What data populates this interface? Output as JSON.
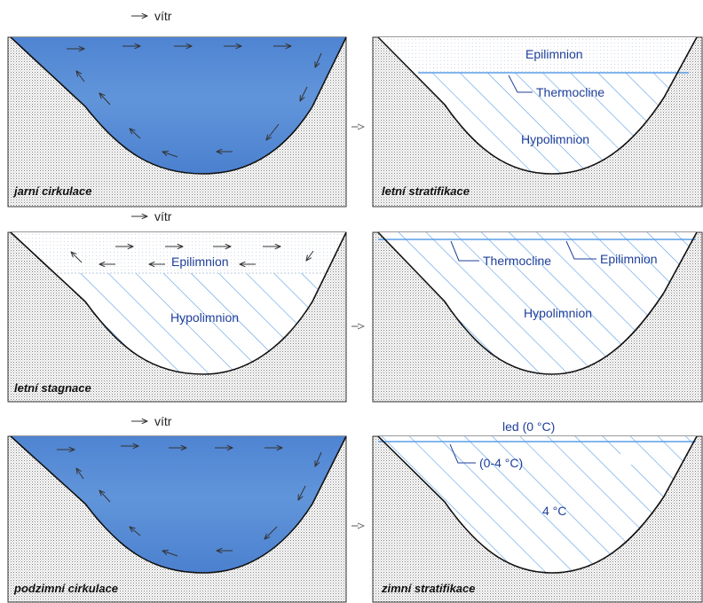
{
  "wind_label": "vítr",
  "colors": {
    "water": "#5b8ed6",
    "hatch": "#5a9ee8",
    "thermocline": "#5a9ee8",
    "label_blue": "#1f3f99",
    "ground_dots": "#7a7a7a",
    "basin_outline": "#111111"
  },
  "stage_labels": {
    "spring_circulation": "jarní cirkulace",
    "summer_stratification": "letní stratifikace",
    "summer_stagnation": "letní stagnace",
    "autumn_circulation": "podzimní cirkulace",
    "winter_stratification": "zimní stratifikace"
  },
  "layer_labels": {
    "epilimnion": "Epilimnion",
    "thermocline": "Thermocline",
    "hypolimnion": "Hypolimnion",
    "ice": "led (0 °C)",
    "cold_layer": "(0-4 °C)",
    "deep_water": "4 °C"
  }
}
